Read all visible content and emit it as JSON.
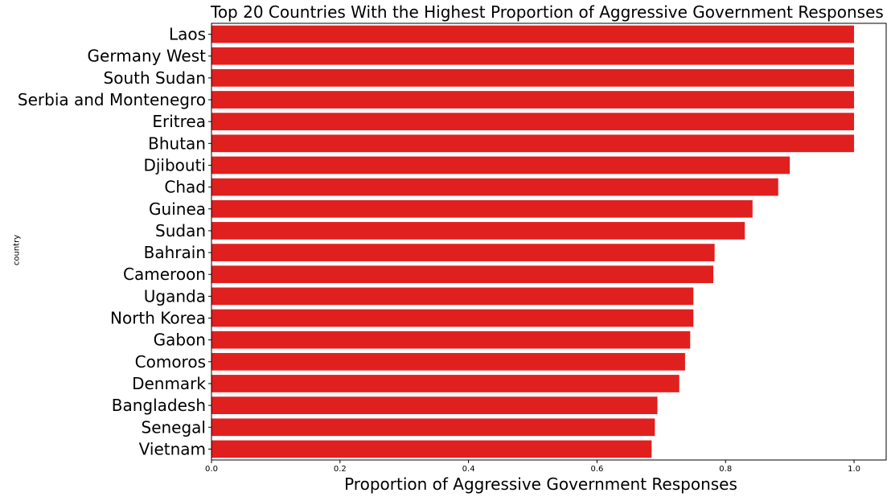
{
  "chart_data": {
    "type": "bar",
    "orientation": "horizontal",
    "title": "Top 20 Countries With the Highest Proportion of Aggressive Government Responses",
    "xlabel": "Proportion of Aggressive Government Responses",
    "ylabel": "country",
    "xlim": [
      0,
      1.05
    ],
    "xticks": [
      "0.0",
      "0.2",
      "0.4",
      "0.6",
      "0.8",
      "1.0"
    ],
    "xtick_values": [
      0.0,
      0.2,
      0.4,
      0.6,
      0.8,
      1.0
    ],
    "grid": false,
    "bar_color": "#e0201f",
    "categories": [
      "Laos",
      "Germany West",
      "South Sudan",
      "Serbia and Montenegro",
      "Eritrea",
      "Bhutan",
      "Djibouti",
      "Chad",
      "Guinea",
      "Sudan",
      "Bahrain",
      "Cameroon",
      "Uganda",
      "North Korea",
      "Gabon",
      "Comoros",
      "Denmark",
      "Bangladesh",
      "Senegal",
      "Vietnam"
    ],
    "values": [
      1.0,
      1.0,
      1.0,
      1.0,
      1.0,
      1.0,
      0.9,
      0.882,
      0.842,
      0.83,
      0.783,
      0.781,
      0.75,
      0.75,
      0.745,
      0.737,
      0.728,
      0.694,
      0.69,
      0.685
    ]
  }
}
